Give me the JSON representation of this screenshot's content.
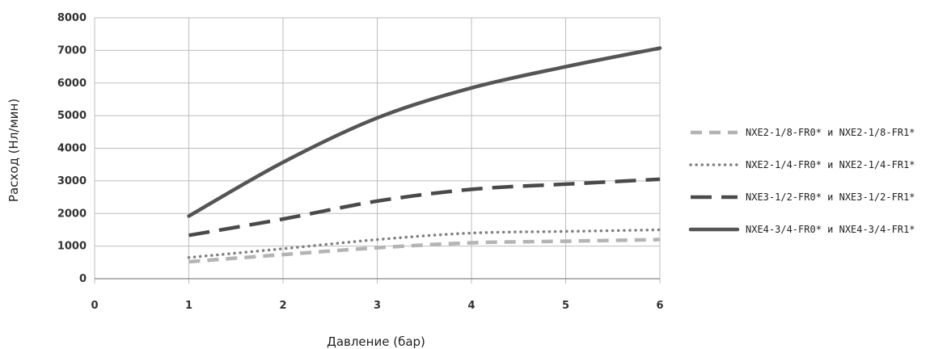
{
  "chart_data": {
    "type": "line",
    "xlabel": "Давление (бар)",
    "ylabel": "Расход (Нл/мин)",
    "xlim": [
      0,
      6
    ],
    "ylim": [
      0,
      8000
    ],
    "x_ticks": [
      "0",
      "1",
      "2",
      "3",
      "4",
      "5",
      "6"
    ],
    "y_ticks": [
      "0",
      "1000",
      "2000",
      "3000",
      "4000",
      "5000",
      "6000",
      "7000",
      "8000"
    ],
    "grid": true,
    "legend_position": "right",
    "series": [
      {
        "name": "NXE2-1/8-FR0* и NXE2-1/8-FR1*",
        "color": "#b4b4b4",
        "style": "dashed",
        "x": [
          1,
          2,
          3,
          4,
          5,
          6
        ],
        "values": [
          520,
          740,
          950,
          1100,
          1150,
          1200
        ]
      },
      {
        "name": "NXE2-1/4-FR0* и NXE2-1/4-FR1*",
        "color": "#808080",
        "style": "dotted",
        "x": [
          1,
          2,
          3,
          4,
          5,
          6
        ],
        "values": [
          650,
          920,
          1200,
          1400,
          1450,
          1500
        ]
      },
      {
        "name": "NXE3-1/2-FR0* и NXE3-1/2-FR1*",
        "color": "#4a4a4a",
        "style": "long-dashed",
        "x": [
          1,
          2,
          3,
          4,
          5,
          6
        ],
        "values": [
          1330,
          1830,
          2380,
          2740,
          2900,
          3050
        ]
      },
      {
        "name": "NXE4-3/4-FR0* и NXE4-3/4-FR1*",
        "color": "#555555",
        "style": "solid",
        "x": [
          1,
          2,
          3,
          4,
          5,
          6
        ],
        "values": [
          1920,
          3570,
          4930,
          5850,
          6500,
          7070
        ]
      }
    ]
  }
}
